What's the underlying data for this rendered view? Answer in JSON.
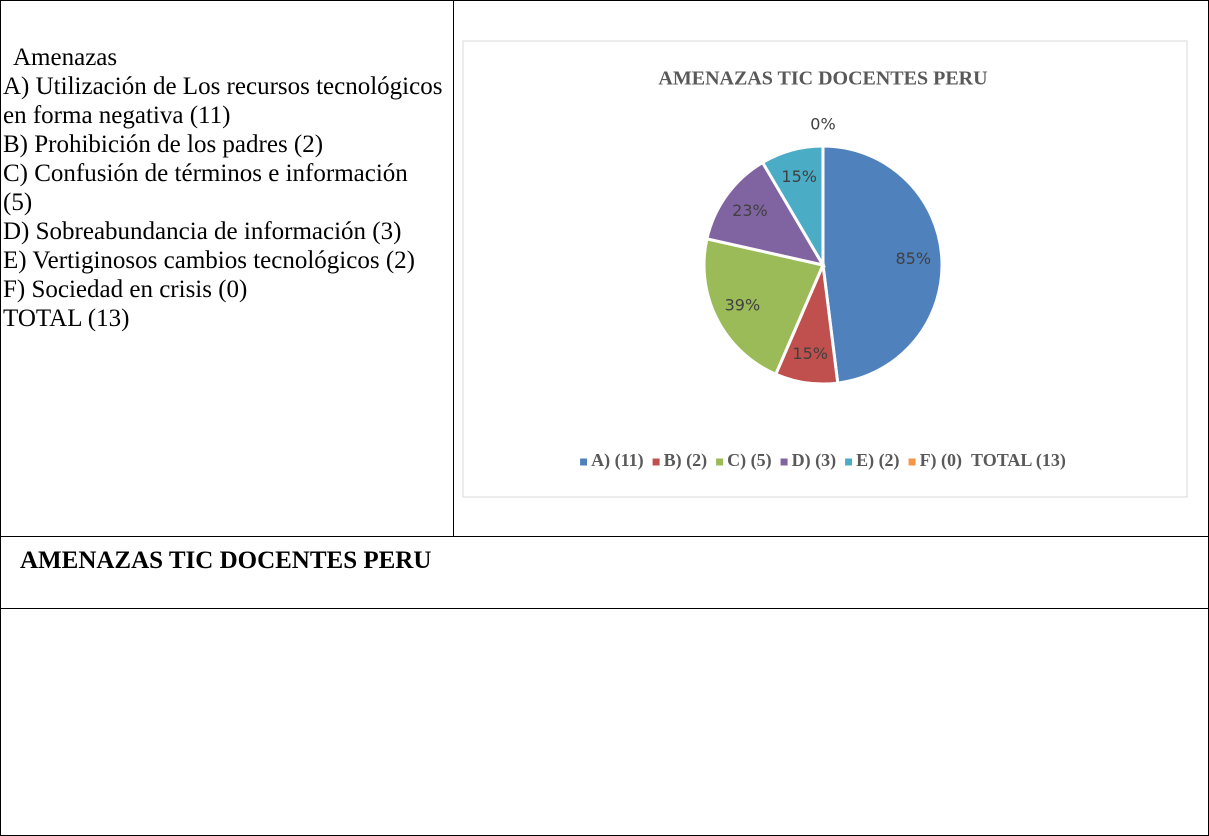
{
  "left_cell": {
    "heading": "Amenazas",
    "items": [
      "A) Utilización de Los recursos tecnológicos en forma negativa (11)",
      "B) Prohibición de los padres (2)",
      "C) Confusión de términos e información (5)",
      "D) Sobreabundancia de información (3)",
      "E) Vertiginosos cambios tecnológicos (2)",
      "F) Sociedad en crisis (0)"
    ],
    "total": "TOTAL (13)"
  },
  "chart_data": {
    "type": "pie",
    "title": "AMENAZAS TIC DOCENTES PERU",
    "categories": [
      "A) (11)",
      "B) (2)",
      "C) (5)",
      "D) (3)",
      "E) (2)",
      "F) (0)"
    ],
    "values": [
      85,
      15,
      39,
      23,
      15,
      0
    ],
    "value_labels": [
      "85%",
      "15%",
      "39%",
      "23%",
      "15%",
      "0%"
    ],
    "colors": [
      "#4f81bd",
      "#c0504d",
      "#9bbb59",
      "#8064a2",
      "#4bacc6",
      "#f79646"
    ],
    "legend_note": "TOTAL (13)",
    "legend": "bottom"
  },
  "caption": "AMENAZAS TIC DOCENTES PERU"
}
